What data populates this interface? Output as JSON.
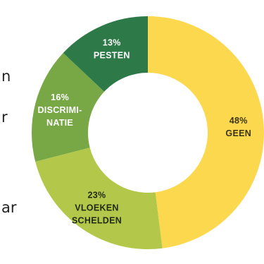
{
  "side_fragments": [
    "n",
    "r",
    "ar"
  ],
  "chart_data": {
    "type": "pie",
    "donut": true,
    "title": "",
    "slices": [
      {
        "percent_label": "48%",
        "name_lines": [
          "GEEN"
        ],
        "value": 48,
        "color": "#fcd84e",
        "text_color": "#3a3410"
      },
      {
        "percent_label": "23%",
        "name_lines": [
          "VLOEKEN",
          "SCHELDEN"
        ],
        "value": 23,
        "color": "#b3c84a",
        "text_color": "#1f2a10"
      },
      {
        "percent_label": "16%",
        "name_lines": [
          "DISCRIMI-",
          "NATIE"
        ],
        "value": 16,
        "color": "#77a845",
        "text_color": "#ffffff"
      },
      {
        "percent_label": "13%",
        "name_lines": [
          "PESTEN"
        ],
        "value": 13,
        "color": "#2d7a48",
        "text_color": "#ffffff"
      }
    ]
  }
}
